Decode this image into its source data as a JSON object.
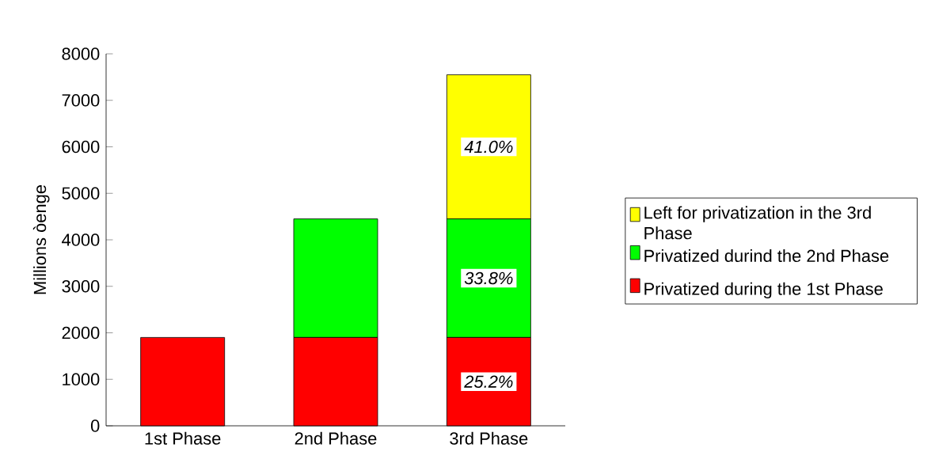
{
  "chart_data": {
    "type": "bar",
    "stacked": true,
    "categories": [
      "1st Phase",
      "2nd Phase",
      "3rd Phase"
    ],
    "ylabel": "Millions òenge",
    "ylim": [
      0,
      8000
    ],
    "yticks": [
      0,
      1000,
      2000,
      3000,
      4000,
      5000,
      6000,
      7000,
      8000
    ],
    "legend": "right",
    "annotations": [
      "25.2%",
      "33.8%",
      "41.0%"
    ],
    "series": [
      {
        "name": "Privatized during the 1st Phase",
        "color": "#ff0000",
        "values": [
          1900,
          1900,
          1900
        ]
      },
      {
        "name": "Privatized durind the 2nd Phase",
        "color": "#00ff00",
        "values": [
          null,
          2550,
          2550
        ]
      },
      {
        "name": "Left for privatization in the 3rd Phase",
        "color": "#ffff00",
        "values": [
          null,
          null,
          3100
        ]
      }
    ]
  }
}
